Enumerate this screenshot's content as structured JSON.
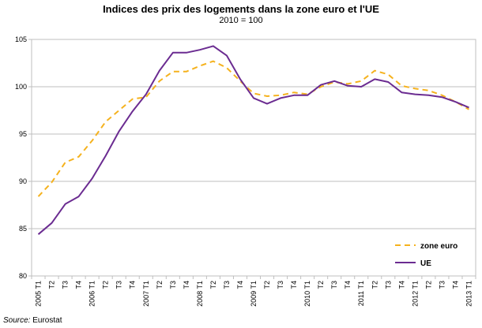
{
  "title": "Indices des prix des logements dans la zone euro et l'UE",
  "subtitle": "2010 = 100",
  "source_label": "Source:",
  "source_value": "Eurostat",
  "chart_data": {
    "type": "line",
    "title": "Indices des prix des logements dans la zone euro et l'UE",
    "subtitle": "2010 = 100",
    "xlabel": "",
    "ylabel": "",
    "ylim": [
      80,
      105
    ],
    "yticks": [
      80,
      85,
      90,
      95,
      100,
      105
    ],
    "grid": "horizontal",
    "legend_position": "bottom-right",
    "x": [
      "2005 T1",
      "T2",
      "T3",
      "T4",
      "2006 T1",
      "T2",
      "T3",
      "T4",
      "2007 T1",
      "T2",
      "T3",
      "T4",
      "2008 T1",
      "T2",
      "T3",
      "T4",
      "2009 T1",
      "T2",
      "T3",
      "T4",
      "2010 T1",
      "T2",
      "T3",
      "T4",
      "2011 T1",
      "T2",
      "T3",
      "T4",
      "2012 T1",
      "T2",
      "T3",
      "T4",
      "2013 T1"
    ],
    "series": [
      {
        "name": "zone euro",
        "color": "#F5B21E",
        "dash": true,
        "values": [
          88.4,
          89.9,
          92.0,
          92.6,
          94.3,
          96.3,
          97.5,
          98.7,
          98.9,
          100.6,
          101.6,
          101.6,
          102.2,
          102.7,
          102.0,
          100.6,
          99.3,
          99.0,
          99.1,
          99.4,
          99.2,
          100.0,
          100.5,
          100.3,
          100.6,
          101.7,
          101.3,
          100.1,
          99.8,
          99.6,
          99.1,
          98.4,
          97.6
        ]
      },
      {
        "name": "UE",
        "color": "#6B2C91",
        "dash": false,
        "values": [
          84.4,
          85.6,
          87.6,
          88.4,
          90.3,
          92.7,
          95.3,
          97.4,
          99.2,
          101.7,
          103.6,
          103.6,
          103.9,
          104.3,
          103.3,
          100.8,
          98.8,
          98.2,
          98.8,
          99.1,
          99.1,
          100.2,
          100.6,
          100.1,
          100.0,
          100.8,
          100.5,
          99.4,
          99.2,
          99.1,
          98.9,
          98.4,
          97.8
        ]
      }
    ]
  }
}
